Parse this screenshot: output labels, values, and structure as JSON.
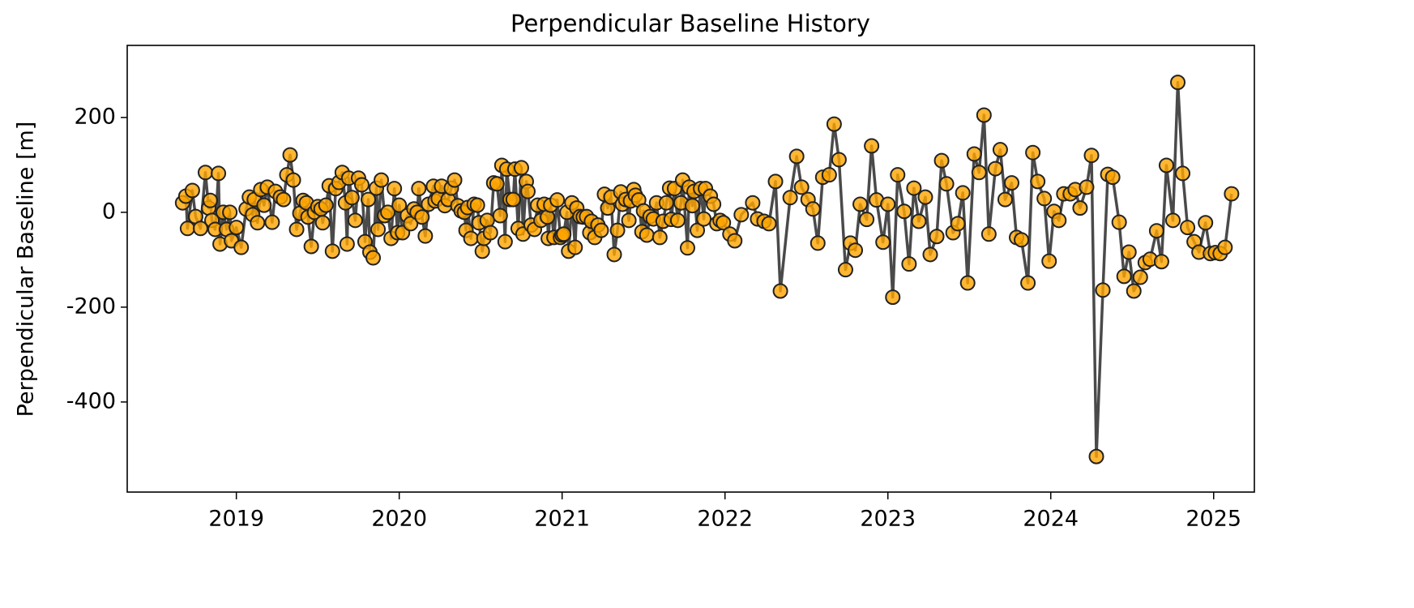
{
  "chart_data": {
    "type": "line",
    "title": "Perpendicular Baseline History",
    "ylabel": "Perpendicular Baseline [m]",
    "color": "#ffa500",
    "line_color": "#404040",
    "edge_color": "#222222",
    "xlim": [
      2018.33,
      2025.25
    ],
    "ylim": [
      -590,
      352
    ],
    "xticks": [
      2019,
      2020,
      2021,
      2022,
      2023,
      2024,
      2025
    ],
    "yticks": [
      -400,
      -200,
      0,
      200
    ],
    "x": [
      2018.67,
      2018.69,
      2018.7,
      2018.73,
      2018.75,
      2018.78,
      2018.81,
      2018.83,
      2018.84,
      2018.85,
      2018.87,
      2018.89,
      2018.9,
      2018.92,
      2018.94,
      2018.96,
      2018.97,
      2019.0,
      2019.03,
      2019.06,
      2019.08,
      2019.1,
      2019.11,
      2019.13,
      2019.15,
      2019.17,
      2019.19,
      2019.22,
      2019.24,
      2019.27,
      2019.29,
      2019.31,
      2019.33,
      2019.35,
      2019.37,
      2019.39,
      2019.41,
      2019.43,
      2019.44,
      2019.46,
      2019.48,
      2019.5,
      2019.52,
      2019.53,
      2019.55,
      2019.57,
      2019.59,
      2019.61,
      2019.63,
      2019.65,
      2019.67,
      2019.68,
      2019.69,
      2019.71,
      2019.73,
      2019.75,
      2019.77,
      2019.79,
      2019.81,
      2019.82,
      2019.84,
      2019.86,
      2019.87,
      2019.89,
      2019.91,
      2019.93,
      2019.95,
      2019.97,
      2019.99,
      2020.0,
      2020.02,
      2020.05,
      2020.07,
      2020.09,
      2020.11,
      2020.12,
      2020.14,
      2020.16,
      2020.18,
      2020.21,
      2020.22,
      2020.24,
      2020.26,
      2020.28,
      2020.3,
      2020.32,
      2020.34,
      2020.36,
      2020.38,
      2020.4,
      2020.41,
      2020.42,
      2020.44,
      2020.46,
      2020.48,
      2020.49,
      2020.51,
      2020.52,
      2020.54,
      2020.56,
      2020.58,
      2020.6,
      2020.62,
      2020.63,
      2020.65,
      2020.66,
      2020.68,
      2020.7,
      2020.71,
      2020.73,
      2020.75,
      2020.76,
      2020.78,
      2020.79,
      2020.81,
      2020.83,
      2020.85,
      2020.87,
      2020.89,
      2020.91,
      2020.915,
      2020.93,
      2020.95,
      2020.97,
      2020.99,
      2021.0,
      2021.01,
      2021.03,
      2021.04,
      2021.06,
      2021.08,
      2021.09,
      2021.11,
      2021.13,
      2021.15,
      2021.17,
      2021.18,
      2021.2,
      2021.22,
      2021.24,
      2021.26,
      2021.28,
      2021.3,
      2021.32,
      2021.34,
      2021.36,
      2021.37,
      2021.39,
      2021.41,
      2021.42,
      2021.44,
      2021.45,
      2021.47,
      2021.49,
      2021.5,
      2021.52,
      2021.54,
      2021.56,
      2021.58,
      2021.6,
      2021.62,
      2021.64,
      2021.66,
      2021.67,
      2021.69,
      2021.71,
      2021.73,
      2021.74,
      2021.77,
      2021.78,
      2021.8,
      2021.81,
      2021.83,
      2021.85,
      2021.87,
      2021.88,
      2021.91,
      2021.93,
      2021.95,
      2021.97,
      2021.99,
      2022.03,
      2022.06,
      2022.1,
      2022.17,
      2022.2,
      2022.24,
      2022.27,
      2022.31,
      2022.34,
      2022.4,
      2022.44,
      2022.47,
      2022.51,
      2022.54,
      2022.57,
      2022.6,
      2022.64,
      2022.67,
      2022.7,
      2022.74,
      2022.77,
      2022.8,
      2022.83,
      2022.87,
      2022.9,
      2022.93,
      2022.97,
      2023.0,
      2023.03,
      2023.06,
      2023.1,
      2023.13,
      2023.16,
      2023.19,
      2023.23,
      2023.26,
      2023.3,
      2023.33,
      2023.36,
      2023.4,
      2023.43,
      2023.46,
      2023.49,
      2023.53,
      2023.56,
      2023.59,
      2023.62,
      2023.66,
      2023.69,
      2023.72,
      2023.76,
      2023.79,
      2023.82,
      2023.86,
      2023.89,
      2023.92,
      2023.96,
      2023.99,
      2024.02,
      2024.05,
      2024.08,
      2024.12,
      2024.15,
      2024.18,
      2024.22,
      2024.25,
      2024.28,
      2024.32,
      2024.35,
      2024.38,
      2024.42,
      2024.45,
      2024.48,
      2024.51,
      2024.55,
      2024.58,
      2024.61,
      2024.65,
      2024.68,
      2024.71,
      2024.75,
      2024.78,
      2024.81,
      2024.84,
      2024.88,
      2024.91,
      2024.95,
      2024.98,
      2025.01,
      2025.04,
      2025.07,
      2025.11
    ],
    "values": [
      20,
      34,
      -34,
      46,
      -9,
      -34,
      84,
      9,
      25,
      -17,
      -36,
      82,
      -67,
      0,
      -36,
      0,
      -60,
      -32,
      -74,
      7,
      32,
      -5,
      27,
      -22,
      48,
      15,
      53,
      -21,
      44,
      32,
      27,
      79,
      121,
      68,
      -36,
      -2,
      25,
      20,
      -10,
      -72,
      0,
      12,
      7,
      -22,
      15,
      56,
      -82,
      50,
      63,
      84,
      20,
      -67,
      72,
      31,
      -17,
      72,
      58,
      -62,
      27,
      -84,
      -96,
      51,
      -36,
      68,
      -7,
      0,
      -55,
      50,
      -43,
      15,
      -43,
      -7,
      -24,
      7,
      0,
      50,
      -10,
      -50,
      17,
      55,
      24,
      29,
      55,
      14,
      27,
      51,
      68,
      14,
      3,
      0,
      -38,
      10,
      -55,
      17,
      15,
      -22,
      -82,
      -55,
      -17,
      -43,
      62,
      60,
      -7,
      99,
      -62,
      91,
      27,
      27,
      91,
      -34,
      94,
      -46,
      65,
      44,
      -27,
      -36,
      15,
      -17,
      17,
      -10,
      -55,
      15,
      -53,
      26,
      -53,
      -48,
      -46,
      0,
      -82,
      20,
      -74,
      9,
      -9,
      -10,
      -9,
      -43,
      -19,
      -53,
      -27,
      -38,
      38,
      9,
      32,
      -89,
      -38,
      43,
      17,
      27,
      -17,
      24,
      48,
      36,
      26,
      -41,
      3,
      -48,
      -9,
      -14,
      20,
      -53,
      -19,
      20,
      51,
      -15,
      50,
      -17,
      20,
      68,
      -75,
      53,
      14,
      44,
      -38,
      50,
      -14,
      50,
      34,
      17,
      -24,
      -17,
      -22,
      -46,
      -60,
      -5,
      20,
      -14,
      -19,
      -24,
      65,
      -166,
      31,
      118,
      53,
      27,
      7,
      -65,
      74,
      79,
      186,
      111,
      -121,
      -65,
      -80,
      17,
      -15,
      140,
      26,
      -63,
      17,
      -179,
      79,
      2,
      -109,
      51,
      -19,
      32,
      -89,
      -51,
      109,
      60,
      -43,
      -24,
      41,
      -149,
      123,
      84,
      205,
      -46,
      92,
      132,
      27,
      62,
      -53,
      -58,
      -149,
      126,
      65,
      29,
      -103,
      2,
      -17,
      39,
      39,
      48,
      9,
      53,
      120,
      -515,
      -164,
      80,
      74,
      -21,
      -135,
      -84,
      -166,
      -137,
      -106,
      -99,
      -39,
      -104,
      99,
      -17,
      274,
      82,
      -32,
      -62,
      -84,
      -22,
      -87,
      -85,
      -87,
      -74,
      39
    ]
  }
}
